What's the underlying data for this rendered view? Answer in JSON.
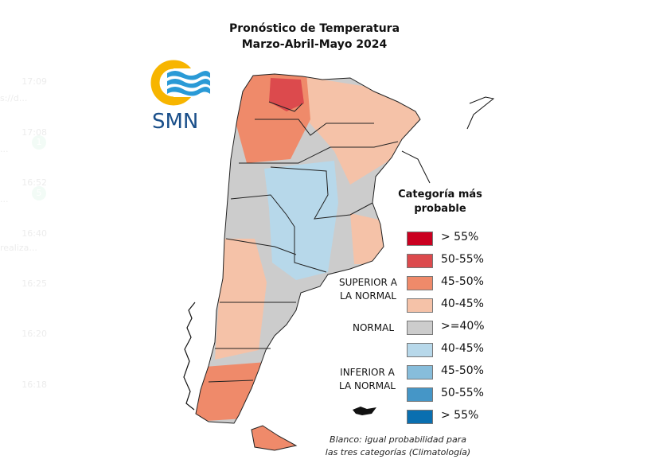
{
  "background_ghost": {
    "times": [
      "17:09",
      "17:08",
      "16:52",
      "16:40",
      "16:25",
      "16:20",
      "16:18"
    ],
    "snippets": [
      "s://d...",
      "...",
      "...",
      "realiza..."
    ],
    "badges": [
      "1",
      "5"
    ]
  },
  "header": {
    "title_line1": "Pronóstico de Temperatura",
    "title_line2": "Marzo-Abril-Mayo 2024"
  },
  "logo": {
    "text": "SMN",
    "colors": {
      "ring": "#f7b500",
      "waves": "#2a9ad6"
    }
  },
  "legend": {
    "title_line1": "Categoría más",
    "title_line2": "probable",
    "groups": {
      "superior": [
        "SUPERIOR A",
        "LA NORMAL"
      ],
      "normal": "NORMAL",
      "inferior": [
        "INFERIOR A",
        "LA NORMAL"
      ]
    },
    "items": [
      {
        "label": "> 55%",
        "color": "#ca0020"
      },
      {
        "label": "50-55%",
        "color": "#dc4a4d"
      },
      {
        "label": "45-50%",
        "color": "#ef8a6a"
      },
      {
        "label": "40-45%",
        "color": "#f5c2a8"
      },
      {
        "label": ">=40%",
        "color": "#cccccc"
      },
      {
        "label": "40-45%",
        "color": "#b7d8ea"
      },
      {
        "label": "45-50%",
        "color": "#87bddb"
      },
      {
        "label": "50-55%",
        "color": "#4596c7"
      },
      {
        "label": "> 55%",
        "color": "#0a6fb0"
      }
    ],
    "note_line1": "Blanco: igual probabilidad para",
    "note_line2": "las tres categorías (Climatología)"
  }
}
